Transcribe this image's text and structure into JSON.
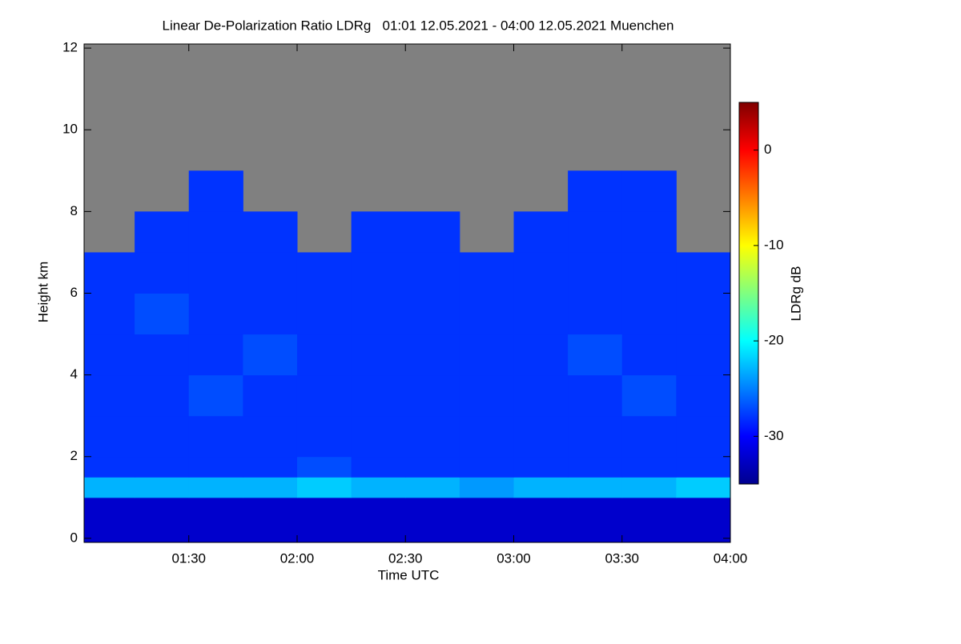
{
  "chart_data": {
    "type": "heatmap",
    "title": "Linear De-Polarization Ratio LDRg   01:01 12.05.2021 - 04:00 12.05.2021 Muenchen",
    "xlabel": "Time UTC",
    "ylabel": "Height km",
    "colorbar_label": "LDRg dB",
    "xlim": [
      61,
      240
    ],
    "xticks": [
      {
        "value": 90,
        "label": "01:30"
      },
      {
        "value": 120,
        "label": "02:00"
      },
      {
        "value": 150,
        "label": "02:30"
      },
      {
        "value": 180,
        "label": "03:00"
      },
      {
        "value": 210,
        "label": "03:30"
      },
      {
        "value": 240,
        "label": "04:00"
      }
    ],
    "ylim": [
      -0.1,
      12.1
    ],
    "yticks": [
      0,
      2,
      4,
      6,
      8,
      10,
      12
    ],
    "clim": [
      -35,
      5
    ],
    "cticks": [
      0,
      -10,
      -20,
      -30
    ],
    "colormap": "jet",
    "missing_color": "#808080",
    "x_edges": [
      61,
      75,
      90,
      105,
      120,
      135,
      150,
      165,
      180,
      195,
      210,
      225,
      240
    ],
    "y_edges": [
      -0.1,
      1,
      1.5,
      2,
      3,
      4,
      5,
      6,
      7,
      8,
      9,
      10,
      12.1
    ],
    "z": [
      [
        -32,
        -32,
        -32,
        -32,
        -32,
        -32,
        -32,
        -32,
        -32,
        -32,
        -32,
        -32
      ],
      [
        -23,
        -23,
        -23,
        -23,
        -22,
        -23,
        -23,
        -24,
        -23,
        -23,
        -23,
        -22
      ],
      [
        -28,
        -28,
        -28,
        -28,
        -27,
        -28,
        -28,
        -28,
        -28,
        -28,
        -28,
        -28
      ],
      [
        -28,
        -28,
        -28,
        -28,
        -28,
        -28,
        -28,
        -28,
        -28,
        -28,
        -28,
        -28
      ],
      [
        -28,
        -28,
        -27,
        -28,
        -28,
        -28,
        -28,
        -28,
        -28,
        -28,
        -27,
        -28
      ],
      [
        -28,
        -28,
        -28,
        -27,
        -28,
        -28,
        -28,
        -28,
        -28,
        -27,
        -28,
        -28
      ],
      [
        -28,
        -27,
        -28,
        -28,
        -28,
        -28,
        -28,
        -28,
        -28,
        -28,
        -28,
        -28
      ],
      [
        -28,
        -28,
        -28,
        -28,
        -28,
        -28,
        -28,
        -28,
        -28,
        -28,
        -28,
        -28
      ],
      [
        null,
        -28,
        -28,
        -28,
        null,
        -28,
        -28,
        null,
        -28,
        -28,
        -28,
        null
      ],
      [
        null,
        null,
        -28,
        null,
        null,
        null,
        null,
        null,
        null,
        -28,
        -28,
        null
      ],
      [
        null,
        null,
        null,
        null,
        null,
        null,
        null,
        null,
        null,
        null,
        null,
        null
      ],
      [
        null,
        null,
        null,
        null,
        null,
        null,
        null,
        null,
        null,
        null,
        null,
        null
      ]
    ]
  }
}
